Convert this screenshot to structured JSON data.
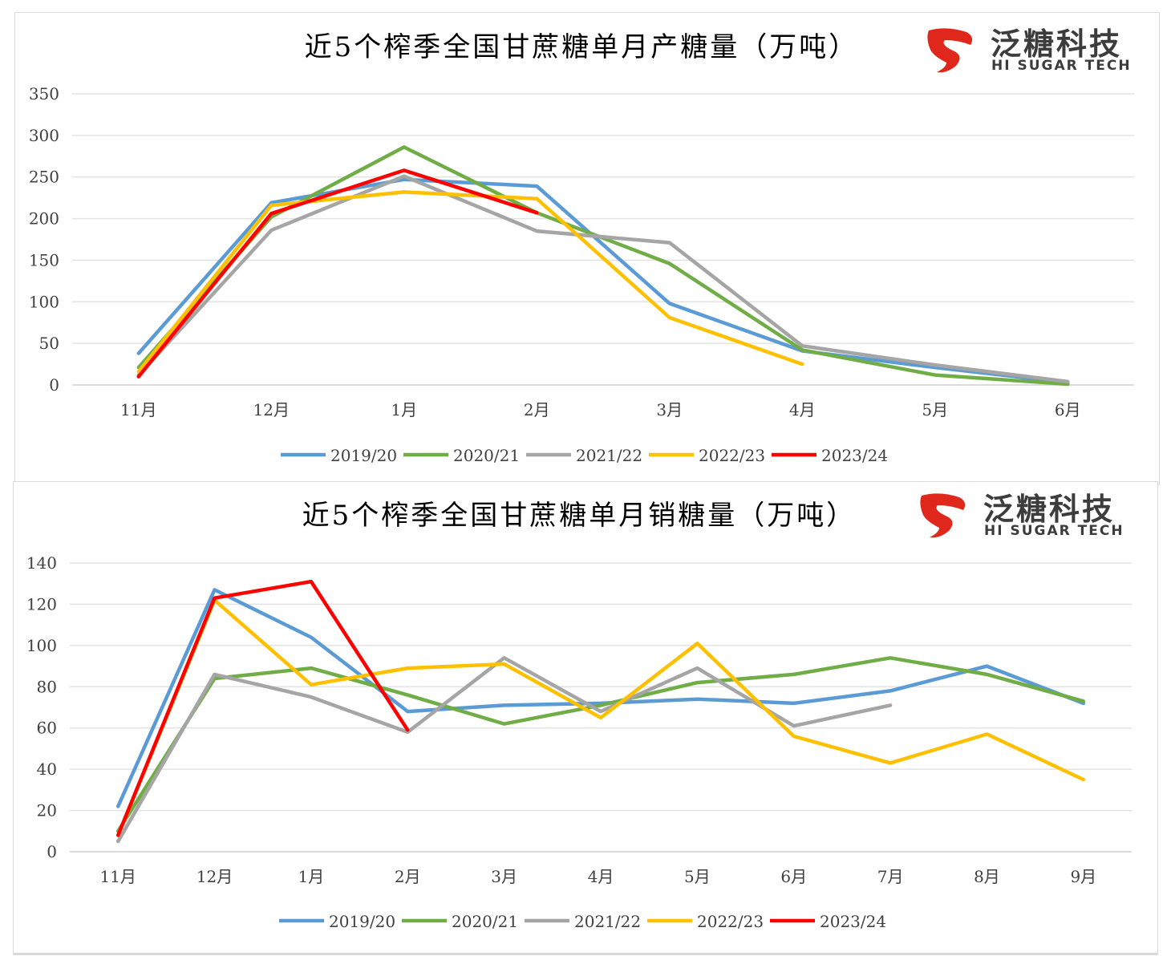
{
  "logo": {
    "cn": "泛糖科技",
    "en": "HI SUGAR TECH",
    "color": "#e0271b"
  },
  "chart_data": [
    {
      "type": "line",
      "title": "近5个榨季全国甘蔗糖单月产糖量（万吨）",
      "categories": [
        "11月",
        "12月",
        "1月",
        "2月",
        "3月",
        "4月",
        "5月",
        "6月"
      ],
      "ylim": [
        0,
        350
      ],
      "yticks": [
        0,
        50,
        100,
        150,
        200,
        250,
        300,
        350
      ],
      "grid": true,
      "legend": "bottom",
      "series": [
        {
          "name": "2019/20",
          "color": "#5b9bd5",
          "values": [
            38,
            219,
            247,
            239,
            98,
            41,
            21,
            3
          ]
        },
        {
          "name": "2020/21",
          "color": "#70ad47",
          "values": [
            21,
            202,
            286,
            207,
            146,
            42,
            12,
            1
          ]
        },
        {
          "name": "2021/22",
          "color": "#a5a5a5",
          "values": [
            12,
            186,
            251,
            185,
            171,
            47,
            24,
            4
          ]
        },
        {
          "name": "2022/23",
          "color": "#ffc000",
          "values": [
            16,
            216,
            232,
            224,
            81,
            25,
            null,
            null
          ]
        },
        {
          "name": "2023/24",
          "color": "#ff0000",
          "values": [
            10,
            206,
            258,
            207,
            null,
            null,
            null,
            null
          ]
        }
      ]
    },
    {
      "type": "line",
      "title": "近5个榨季全国甘蔗糖单月销糖量（万吨）",
      "categories": [
        "11月",
        "12月",
        "1月",
        "2月",
        "3月",
        "4月",
        "5月",
        "6月",
        "7月",
        "8月",
        "9月"
      ],
      "ylim": [
        0,
        140
      ],
      "yticks": [
        0,
        20,
        40,
        60,
        80,
        100,
        120,
        140
      ],
      "grid": true,
      "legend": "bottom",
      "series": [
        {
          "name": "2019/20",
          "color": "#5b9bd5",
          "values": [
            22,
            127,
            104,
            68,
            71,
            72,
            74,
            72,
            78,
            90,
            72
          ]
        },
        {
          "name": "2020/21",
          "color": "#70ad47",
          "values": [
            10,
            84,
            89,
            76,
            62,
            71,
            82,
            86,
            94,
            86,
            73
          ]
        },
        {
          "name": "2021/22",
          "color": "#a5a5a5",
          "values": [
            5,
            86,
            75,
            58,
            94,
            68,
            89,
            61,
            71,
            null,
            null
          ]
        },
        {
          "name": "2022/23",
          "color": "#ffc000",
          "values": [
            8,
            122,
            81,
            89,
            91,
            65,
            101,
            56,
            43,
            57,
            35
          ]
        },
        {
          "name": "2023/24",
          "color": "#ff0000",
          "values": [
            8,
            123,
            131,
            59,
            null,
            null,
            null,
            null,
            null,
            null,
            null
          ]
        }
      ]
    }
  ]
}
